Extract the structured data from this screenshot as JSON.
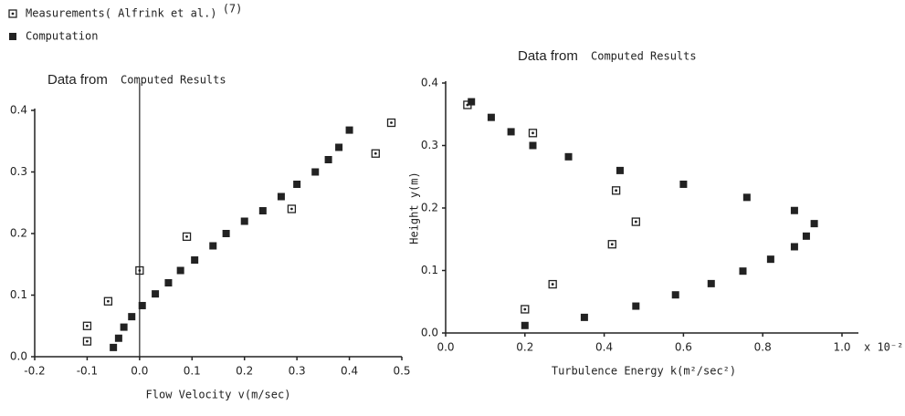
{
  "chart_data": [
    {
      "type": "scatter",
      "title": "Data from",
      "subtitle": "Computed Results",
      "reference": "(7)",
      "x_label": "Flow  Velocity v(m/sec)",
      "xlim": [
        -0.2,
        0.5
      ],
      "xticks": [
        -0.2,
        -0.1,
        {
          "value": 0,
          "label": "0.0"
        },
        0.1,
        0.2,
        0.3,
        0.4,
        0.5
      ],
      "ylim": [
        0,
        0.4
      ],
      "yticks": [
        {
          "value": 0,
          "label": "0.0"
        },
        0.1,
        0.2,
        0.3,
        0.4
      ],
      "zero_line": true,
      "series": [
        {
          "name": "Measurements( Alfrink et al.)",
          "color": "#222",
          "marker": "square-open",
          "x": [
            -0.1,
            -0.1,
            -0.06,
            0,
            0.09,
            0.29,
            0.45,
            0.48
          ],
          "values": [
            0.05,
            0.025,
            0.09,
            0.14,
            0.195,
            0.24,
            0.33,
            0.38
          ]
        },
        {
          "name": "Computation",
          "color": "#222",
          "marker": "square",
          "x": [
            -0.05,
            -0.04,
            -0.03,
            -0.015,
            0.005,
            0.03,
            0.055,
            0.078,
            0.105,
            0.14,
            0.165,
            0.2,
            0.235,
            0.27,
            0.3,
            0.335,
            0.36,
            0.38,
            0.4
          ],
          "values": [
            0.015,
            0.03,
            0.048,
            0.065,
            0.083,
            0.102,
            0.12,
            0.14,
            0.157,
            0.18,
            0.2,
            0.22,
            0.237,
            0.26,
            0.28,
            0.3,
            0.32,
            0.34,
            0.368
          ]
        }
      ]
    },
    {
      "type": "scatter",
      "title": "Data from",
      "subtitle": "Computed Results",
      "x_label": "Turbulence Energy k(m²/sec²)",
      "y_label": "Height y(m)",
      "x_multiplier": "x 10⁻²",
      "xlim": [
        0,
        1.0
      ],
      "xticks": [
        {
          "value": 0,
          "label": "0.0"
        },
        0.2,
        0.4,
        0.6,
        0.8,
        {
          "value": 1,
          "label": "1.0"
        }
      ],
      "ylim": [
        0,
        0.4
      ],
      "yticks": [
        {
          "value": 0,
          "label": "0.0"
        },
        0.1,
        0.2,
        0.3,
        0.4
      ],
      "series": [
        {
          "color": "#222",
          "marker": "square-open",
          "x": [
            0.055,
            0.22,
            0.43,
            0.48,
            0.42,
            0.27,
            0.2
          ],
          "values": [
            0.365,
            0.32,
            0.228,
            0.178,
            0.142,
            0.078,
            0.038
          ]
        },
        {
          "color": "#222",
          "marker": "square",
          "x": [
            0.065,
            0.115,
            0.165,
            0.22,
            0.31,
            0.44,
            0.6,
            0.76,
            0.88,
            0.93,
            0.91,
            0.88,
            0.82,
            0.75,
            0.67,
            0.58,
            0.48,
            0.35,
            0.2
          ],
          "values": [
            0.37,
            0.345,
            0.322,
            0.3,
            0.282,
            0.26,
            0.238,
            0.217,
            0.196,
            0.175,
            0.155,
            0.138,
            0.118,
            0.099,
            0.079,
            0.061,
            0.043,
            0.025,
            0.012
          ]
        }
      ]
    }
  ]
}
